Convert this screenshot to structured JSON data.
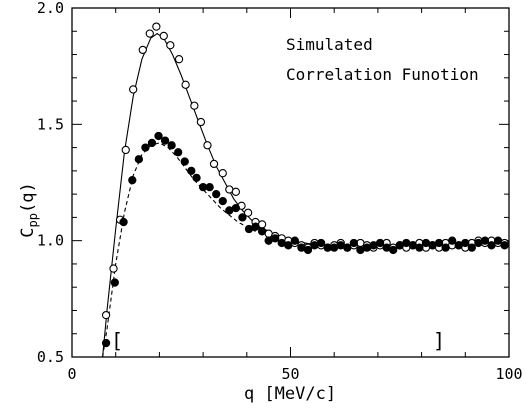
{
  "chart_data": {
    "type": "scatter",
    "title": "",
    "xlabel": "q [MeV/c]",
    "ylabel_main": "C",
    "ylabel_sub": "pp",
    "ylabel_tail": "(q)",
    "xlim": [
      0,
      100
    ],
    "ylim": [
      0.5,
      2.0
    ],
    "x_ticks": [
      0,
      50,
      100
    ],
    "y_ticks": [
      0.5,
      1.0,
      1.5,
      2.0
    ],
    "x_tick_labels": [
      "0",
      "50",
      "100"
    ],
    "y_tick_labels": [
      "0.5",
      "1.0",
      "1.5",
      "2.0"
    ],
    "grid": false,
    "annotation_lines": [
      "Simulated",
      "Correlation Funotion"
    ],
    "brackets": [
      {
        "glyph": "[",
        "x": 10.3,
        "y": 0.55
      },
      {
        "glyph": "]",
        "x": 84.0,
        "y": 0.55
      }
    ],
    "series": [
      {
        "marker": "open-circle",
        "line_style": "solid",
        "points": [
          [
            7.8,
            0.68
          ],
          [
            9.5,
            0.88
          ],
          [
            11.0,
            1.09
          ],
          [
            12.3,
            1.39
          ],
          [
            14.0,
            1.65
          ],
          [
            16.2,
            1.82
          ],
          [
            17.8,
            1.89
          ],
          [
            19.3,
            1.92
          ],
          [
            21.0,
            1.88
          ],
          [
            22.5,
            1.84
          ],
          [
            24.5,
            1.78
          ],
          [
            26.0,
            1.67
          ],
          [
            28.0,
            1.58
          ],
          [
            29.5,
            1.51
          ],
          [
            31.0,
            1.41
          ],
          [
            32.5,
            1.33
          ],
          [
            34.5,
            1.29
          ],
          [
            36.0,
            1.22
          ],
          [
            37.5,
            1.21
          ],
          [
            38.8,
            1.15
          ],
          [
            40.3,
            1.12
          ],
          [
            42.0,
            1.08
          ],
          [
            43.5,
            1.07
          ],
          [
            45.0,
            1.03
          ],
          [
            46.5,
            1.02
          ],
          [
            48.0,
            1.01
          ],
          [
            49.5,
            1.0
          ],
          [
            51.0,
            0.99
          ],
          [
            52.5,
            0.98
          ],
          [
            54.0,
            0.97
          ],
          [
            55.5,
            0.99
          ],
          [
            57.0,
            0.98
          ],
          [
            58.5,
            0.97
          ],
          [
            60.0,
            0.98
          ],
          [
            61.5,
            0.99
          ],
          [
            63.0,
            0.97
          ],
          [
            64.5,
            0.98
          ],
          [
            66.0,
            0.99
          ],
          [
            67.5,
            0.98
          ],
          [
            69.0,
            0.97
          ],
          [
            70.5,
            0.98
          ],
          [
            72.0,
            0.99
          ],
          [
            73.5,
            0.97
          ],
          [
            75.0,
            0.98
          ],
          [
            76.5,
            0.97
          ],
          [
            78.0,
            0.98
          ],
          [
            79.5,
            0.99
          ],
          [
            81.0,
            0.97
          ],
          [
            82.5,
            0.98
          ],
          [
            84.0,
            0.97
          ],
          [
            85.5,
            0.99
          ],
          [
            87.0,
            0.98
          ],
          [
            88.5,
            0.98
          ],
          [
            90.0,
            0.97
          ],
          [
            91.5,
            0.99
          ],
          [
            93.0,
            1.0
          ],
          [
            94.5,
            0.99
          ],
          [
            96.0,
            1.0
          ],
          [
            97.5,
            0.99
          ],
          [
            99.0,
            0.99
          ]
        ],
        "curve": [
          [
            7.0,
            0.5
          ],
          [
            8.0,
            0.7
          ],
          [
            10.0,
            1.05
          ],
          [
            12.0,
            1.38
          ],
          [
            14.0,
            1.62
          ],
          [
            16.0,
            1.78
          ],
          [
            18.0,
            1.87
          ],
          [
            19.5,
            1.89
          ],
          [
            21.0,
            1.87
          ],
          [
            23.0,
            1.8
          ],
          [
            25.0,
            1.71
          ],
          [
            27.0,
            1.61
          ],
          [
            29.0,
            1.51
          ],
          [
            31.0,
            1.41
          ],
          [
            33.0,
            1.32
          ],
          [
            35.0,
            1.25
          ],
          [
            37.0,
            1.18
          ],
          [
            39.0,
            1.13
          ],
          [
            41.0,
            1.09
          ],
          [
            43.0,
            1.06
          ],
          [
            45.0,
            1.04
          ],
          [
            47.0,
            1.02
          ],
          [
            50.0,
            1.0
          ],
          [
            55.0,
            0.985
          ],
          [
            60.0,
            0.98
          ],
          [
            70.0,
            0.98
          ],
          [
            80.0,
            0.985
          ],
          [
            90.0,
            0.985
          ],
          [
            100.0,
            0.99
          ]
        ]
      },
      {
        "marker": "filled-circle",
        "line_style": "dashed",
        "points": [
          [
            7.8,
            0.56
          ],
          [
            9.8,
            0.82
          ],
          [
            11.8,
            1.08
          ],
          [
            13.8,
            1.26
          ],
          [
            15.3,
            1.35
          ],
          [
            16.8,
            1.4
          ],
          [
            18.3,
            1.42
          ],
          [
            19.8,
            1.45
          ],
          [
            21.3,
            1.43
          ],
          [
            22.8,
            1.41
          ],
          [
            24.3,
            1.38
          ],
          [
            25.8,
            1.34
          ],
          [
            27.3,
            1.3
          ],
          [
            28.5,
            1.27
          ],
          [
            30.0,
            1.23
          ],
          [
            31.5,
            1.23
          ],
          [
            33.0,
            1.2
          ],
          [
            34.5,
            1.17
          ],
          [
            36.0,
            1.13
          ],
          [
            37.5,
            1.14
          ],
          [
            39.0,
            1.1
          ],
          [
            40.5,
            1.05
          ],
          [
            42.0,
            1.06
          ],
          [
            43.5,
            1.04
          ],
          [
            45.0,
            1.0
          ],
          [
            46.5,
            1.01
          ],
          [
            48.0,
            0.99
          ],
          [
            49.5,
            0.98
          ],
          [
            51.0,
            1.0
          ],
          [
            52.5,
            0.97
          ],
          [
            54.0,
            0.96
          ],
          [
            55.5,
            0.98
          ],
          [
            57.0,
            0.99
          ],
          [
            58.5,
            0.97
          ],
          [
            60.0,
            0.97
          ],
          [
            61.5,
            0.98
          ],
          [
            63.0,
            0.97
          ],
          [
            64.5,
            0.99
          ],
          [
            66.0,
            0.96
          ],
          [
            67.5,
            0.97
          ],
          [
            69.0,
            0.98
          ],
          [
            70.5,
            0.99
          ],
          [
            72.0,
            0.97
          ],
          [
            73.5,
            0.96
          ],
          [
            75.0,
            0.98
          ],
          [
            76.5,
            0.99
          ],
          [
            78.0,
            0.98
          ],
          [
            79.5,
            0.97
          ],
          [
            81.0,
            0.99
          ],
          [
            82.5,
            0.98
          ],
          [
            84.0,
            0.99
          ],
          [
            85.5,
            0.97
          ],
          [
            87.0,
            1.0
          ],
          [
            88.5,
            0.98
          ],
          [
            90.0,
            0.99
          ],
          [
            91.5,
            0.97
          ],
          [
            93.0,
            0.99
          ],
          [
            94.5,
            1.0
          ],
          [
            96.0,
            0.98
          ],
          [
            97.5,
            1.0
          ],
          [
            99.0,
            0.98
          ]
        ],
        "curve": [
          [
            7.0,
            0.5
          ],
          [
            8.0,
            0.62
          ],
          [
            10.0,
            0.9
          ],
          [
            12.0,
            1.12
          ],
          [
            14.0,
            1.28
          ],
          [
            16.0,
            1.37
          ],
          [
            18.0,
            1.41
          ],
          [
            20.0,
            1.42
          ],
          [
            22.0,
            1.4
          ],
          [
            24.0,
            1.36
          ],
          [
            26.0,
            1.31
          ],
          [
            28.0,
            1.26
          ],
          [
            30.0,
            1.22
          ],
          [
            32.0,
            1.18
          ],
          [
            34.0,
            1.14
          ],
          [
            36.0,
            1.11
          ],
          [
            38.0,
            1.08
          ],
          [
            40.0,
            1.06
          ],
          [
            42.0,
            1.04
          ],
          [
            45.0,
            1.02
          ],
          [
            48.0,
            1.0
          ],
          [
            52.0,
            0.985
          ],
          [
            60.0,
            0.98
          ],
          [
            70.0,
            0.98
          ],
          [
            80.0,
            0.985
          ],
          [
            90.0,
            0.985
          ],
          [
            100.0,
            0.99
          ]
        ]
      }
    ]
  }
}
